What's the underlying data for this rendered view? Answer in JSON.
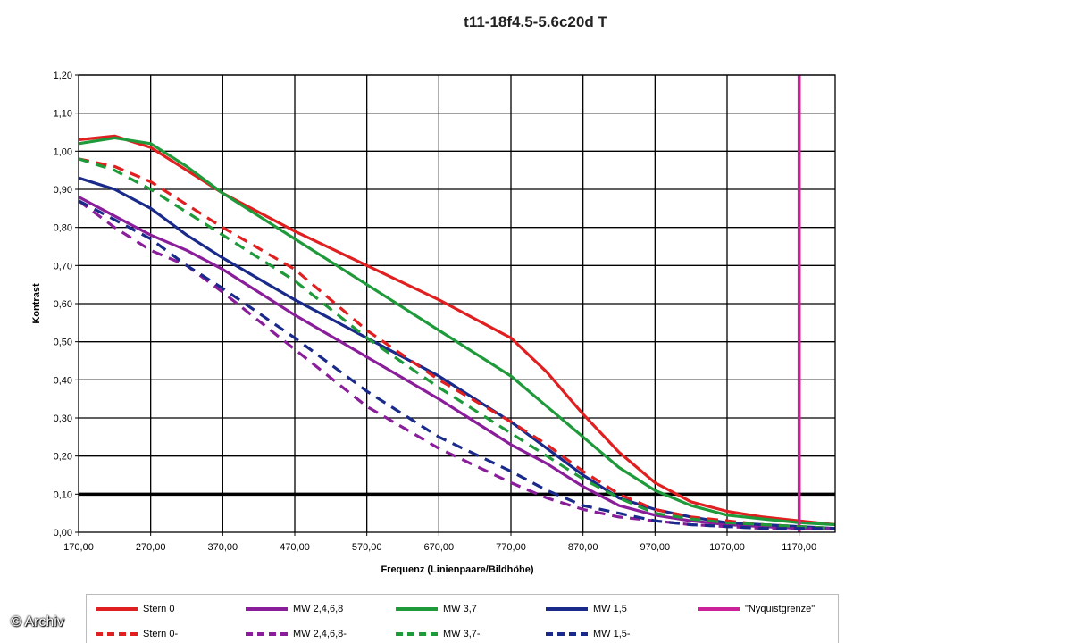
{
  "chart_data": {
    "type": "line",
    "title": "t11-18f4.5-5.6c20d T",
    "xlabel": "Frequenz (Linienpaare/Bildhöhe)",
    "ylabel": "Kontrast",
    "xlim": [
      170,
      1220
    ],
    "ylim": [
      0,
      1.2
    ],
    "x_ticks": [
      "170,00",
      "270,00",
      "370,00",
      "470,00",
      "570,00",
      "670,00",
      "770,00",
      "870,00",
      "970,00",
      "1070,00",
      "1170,00"
    ],
    "y_ticks": [
      "0,00",
      "0,10",
      "0,20",
      "0,30",
      "0,40",
      "0,50",
      "0,60",
      "0,70",
      "0,80",
      "0,90",
      "1,00",
      "1,10",
      "1,20"
    ],
    "grid": true,
    "legend_position": "bottom",
    "reference_lines": [
      {
        "orientation": "horizontal",
        "y": 0.1,
        "color": "#000000"
      },
      {
        "orientation": "vertical",
        "x": 1170,
        "color": "#cc2299",
        "series": "\"Nyquistgrenze\""
      }
    ],
    "series": [
      {
        "name": "Stern 0",
        "color": "#e02020",
        "style": "solid",
        "x": [
          170,
          220,
          270,
          320,
          370,
          470,
          570,
          670,
          770,
          820,
          870,
          920,
          970,
          1020,
          1070,
          1120,
          1170,
          1220
        ],
        "y": [
          1.03,
          1.04,
          1.01,
          0.95,
          0.89,
          0.79,
          0.7,
          0.61,
          0.51,
          0.42,
          0.31,
          0.21,
          0.13,
          0.08,
          0.055,
          0.04,
          0.03,
          0.02
        ]
      },
      {
        "name": "MW 2,4,6,8",
        "color": "#8a1e9a",
        "style": "solid",
        "x": [
          170,
          220,
          270,
          320,
          370,
          470,
          570,
          670,
          770,
          820,
          870,
          920,
          970,
          1020,
          1070,
          1120,
          1170,
          1220
        ],
        "y": [
          0.88,
          0.83,
          0.78,
          0.74,
          0.69,
          0.57,
          0.46,
          0.35,
          0.23,
          0.18,
          0.12,
          0.07,
          0.045,
          0.03,
          0.02,
          0.015,
          0.01,
          0.01
        ]
      },
      {
        "name": "MW 3,7",
        "color": "#1e9a3a",
        "style": "solid",
        "x": [
          170,
          220,
          270,
          320,
          370,
          470,
          570,
          670,
          770,
          820,
          870,
          920,
          970,
          1020,
          1070,
          1120,
          1170,
          1220
        ],
        "y": [
          1.02,
          1.035,
          1.02,
          0.96,
          0.89,
          0.77,
          0.65,
          0.53,
          0.41,
          0.33,
          0.25,
          0.17,
          0.11,
          0.07,
          0.045,
          0.035,
          0.025,
          0.02
        ]
      },
      {
        "name": "MW 1,5",
        "color": "#1a2a8a",
        "style": "solid",
        "x": [
          170,
          220,
          270,
          320,
          370,
          470,
          570,
          670,
          770,
          820,
          870,
          920,
          970,
          1020,
          1070,
          1120,
          1170,
          1220
        ],
        "y": [
          0.93,
          0.9,
          0.85,
          0.78,
          0.72,
          0.61,
          0.51,
          0.41,
          0.29,
          0.22,
          0.15,
          0.09,
          0.06,
          0.04,
          0.025,
          0.02,
          0.015,
          0.01
        ]
      },
      {
        "name": "\"Nyquistgrenze\"",
        "color": "#cc2299",
        "style": "solid",
        "x": [
          1170,
          1170
        ],
        "y": [
          0,
          1.2
        ]
      },
      {
        "name": "Stern 0-",
        "color": "#e02020",
        "style": "dashed",
        "x": [
          170,
          220,
          270,
          320,
          370,
          470,
          570,
          670,
          770,
          820,
          870,
          920,
          970,
          1020,
          1070,
          1120,
          1170,
          1220
        ],
        "y": [
          0.98,
          0.96,
          0.92,
          0.86,
          0.8,
          0.69,
          0.53,
          0.4,
          0.29,
          0.23,
          0.16,
          0.1,
          0.06,
          0.04,
          0.03,
          0.02,
          0.015,
          0.01
        ]
      },
      {
        "name": "MW 2,4,6,8-",
        "color": "#8a1e9a",
        "style": "dashed",
        "x": [
          170,
          220,
          270,
          320,
          370,
          470,
          570,
          670,
          770,
          820,
          870,
          920,
          970,
          1020,
          1070,
          1120,
          1170,
          1220
        ],
        "y": [
          0.87,
          0.8,
          0.74,
          0.7,
          0.63,
          0.48,
          0.33,
          0.22,
          0.13,
          0.09,
          0.06,
          0.04,
          0.03,
          0.02,
          0.015,
          0.01,
          0.01,
          0.01
        ]
      },
      {
        "name": "MW 3,7-",
        "color": "#1e9a3a",
        "style": "dashed",
        "x": [
          170,
          220,
          270,
          320,
          370,
          470,
          570,
          670,
          770,
          820,
          870,
          920,
          970,
          1020,
          1070,
          1120,
          1170,
          1220
        ],
        "y": [
          0.98,
          0.95,
          0.9,
          0.84,
          0.78,
          0.66,
          0.51,
          0.38,
          0.26,
          0.2,
          0.14,
          0.09,
          0.05,
          0.035,
          0.025,
          0.02,
          0.015,
          0.01
        ]
      },
      {
        "name": "MW 1,5-",
        "color": "#1a2a8a",
        "style": "dashed",
        "x": [
          170,
          220,
          270,
          320,
          370,
          470,
          570,
          670,
          770,
          820,
          870,
          920,
          970,
          1020,
          1070,
          1120,
          1170,
          1220
        ],
        "y": [
          0.87,
          0.82,
          0.77,
          0.7,
          0.64,
          0.51,
          0.37,
          0.25,
          0.16,
          0.11,
          0.07,
          0.05,
          0.03,
          0.02,
          0.015,
          0.01,
          0.01,
          0.01
        ]
      }
    ]
  },
  "watermark": "© Archiv"
}
